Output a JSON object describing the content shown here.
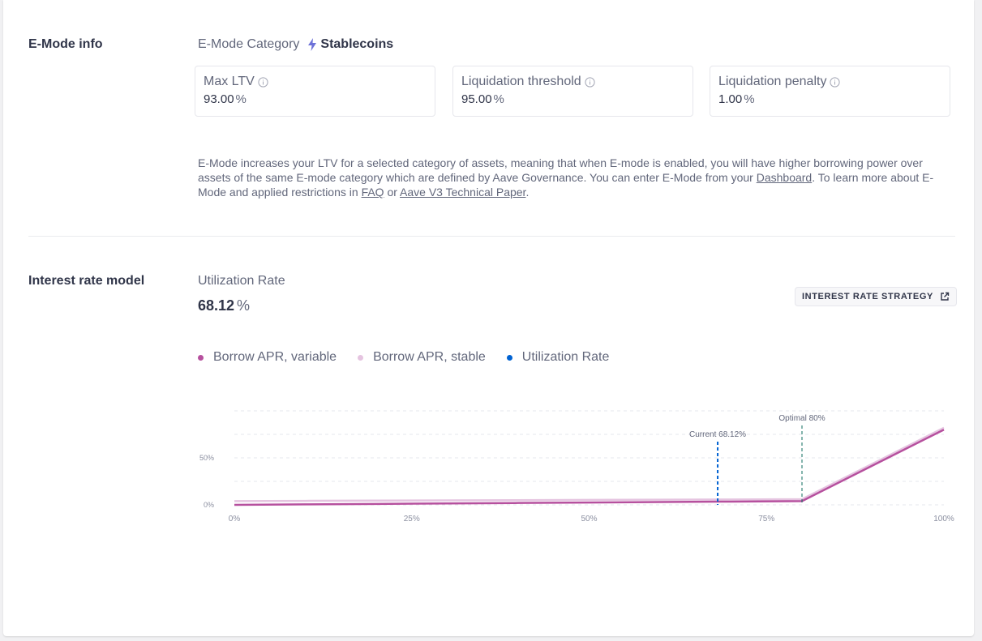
{
  "emode": {
    "section_title": "E-Mode info",
    "category_label": "E-Mode Category",
    "category_name": "Stablecoins",
    "cards": [
      {
        "title": "Max LTV",
        "value": "93.00",
        "unit": "%"
      },
      {
        "title": "Liquidation threshold",
        "value": "95.00",
        "unit": "%"
      },
      {
        "title": "Liquidation penalty",
        "value": "1.00",
        "unit": "%"
      }
    ],
    "description": {
      "part1": "E-Mode increases your LTV for a selected category of assets, meaning that when E-mode is enabled, you will have higher borrowing power over assets of the same E-mode category which are defined by Aave Governance. You can enter E-Mode from your ",
      "link_dashboard": "Dashboard",
      "part2": ". To learn more about E-Mode and applied restrictions in ",
      "link_faq": "FAQ",
      "part3": " or ",
      "link_paper": "Aave V3 Technical Paper",
      "part4": "."
    }
  },
  "interest": {
    "section_title": "Interest rate model",
    "utilization_label": "Utilization Rate",
    "utilization_value": "68.12",
    "utilization_unit": "%",
    "strategy_button": "INTEREST RATE STRATEGY"
  },
  "chart_data": {
    "type": "line",
    "x": [
      0,
      10,
      20,
      30,
      40,
      50,
      60,
      70,
      80,
      90,
      100
    ],
    "series": [
      {
        "name": "Borrow APR, variable",
        "color": "#b6509e",
        "values": [
          0,
          0.5,
          1,
          1.5,
          2,
          2.5,
          3,
          3.5,
          4,
          42,
          80
        ]
      },
      {
        "name": "Borrow APR, stable",
        "color": "#e5c4e0",
        "values": [
          4,
          4.25,
          4.5,
          4.75,
          5,
          5.25,
          5.5,
          5.75,
          6,
          44,
          82
        ]
      }
    ],
    "utilization_series": {
      "name": "Utilization Rate",
      "color": "#0062d2"
    },
    "xticks": [
      "0%",
      "25%",
      "50%",
      "75%",
      "100%"
    ],
    "xtick_values": [
      0,
      25,
      50,
      75,
      100
    ],
    "yticks": [
      "0%",
      "50%"
    ],
    "ytick_values": [
      0,
      50
    ],
    "xlim": [
      0,
      100
    ],
    "ylim": [
      0,
      100
    ],
    "grid": true,
    "legend": "top-left",
    "annotations": [
      {
        "label": "Current 68.12%",
        "x": 68.12,
        "color": "#0062d2"
      },
      {
        "label": "Optimal 80%",
        "x": 80,
        "color": "#0b6b5c"
      }
    ]
  },
  "icons": {
    "bolt": "lightning-icon",
    "info": "info-icon",
    "external": "external-link-icon"
  }
}
